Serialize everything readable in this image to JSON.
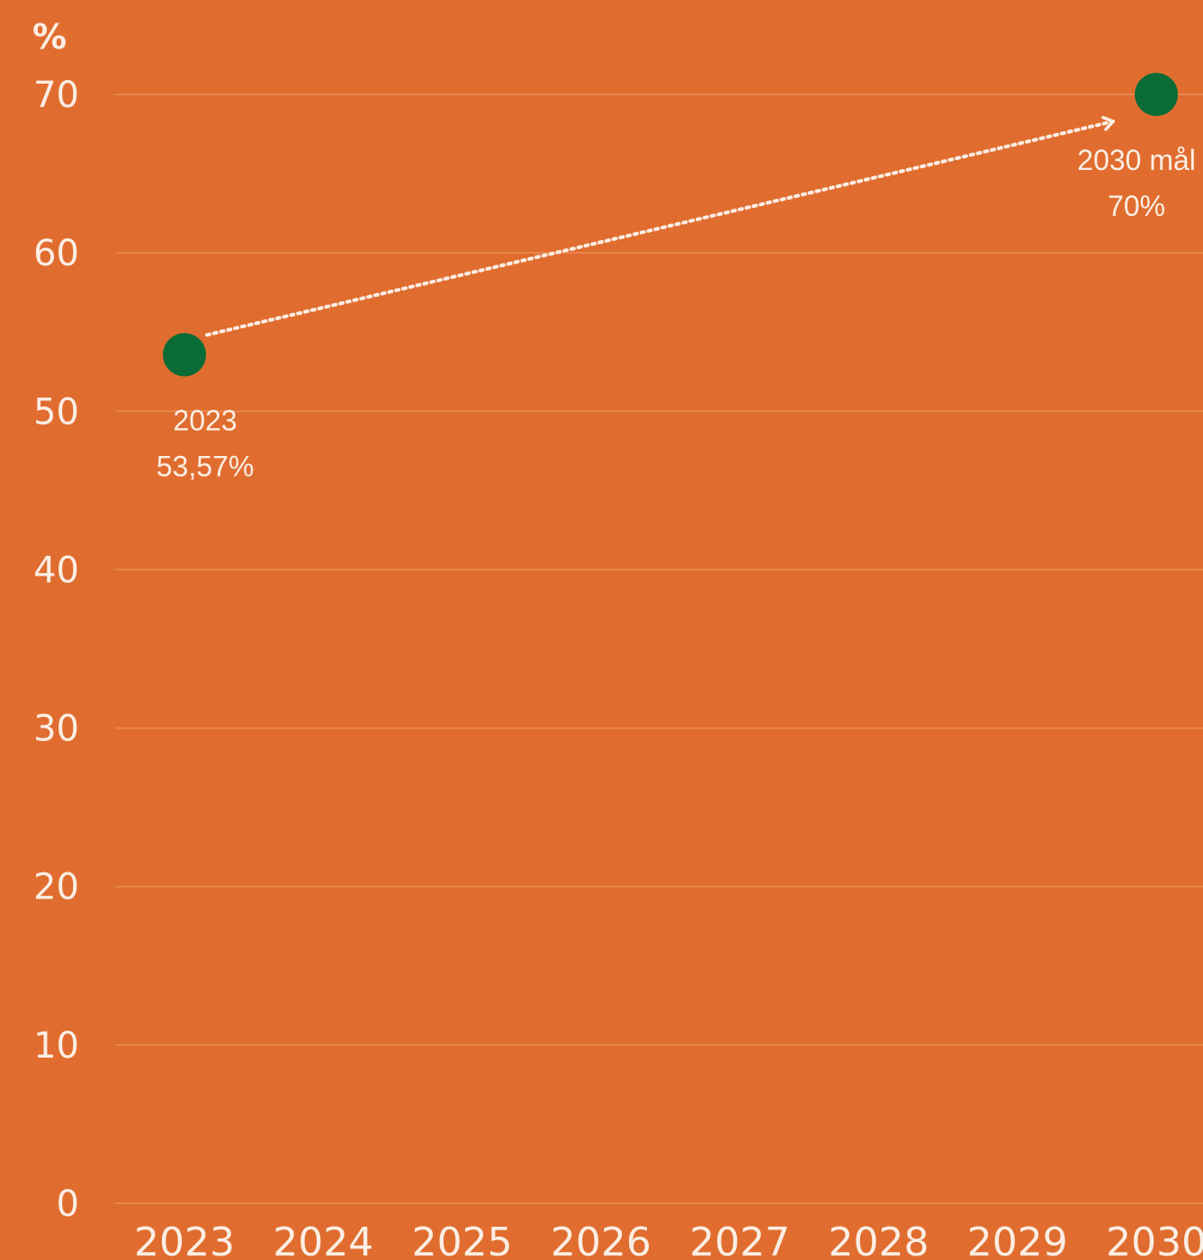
{
  "colors": {
    "background": "#e06d2f",
    "marker": "#0b6b36",
    "text": "#fbeee4",
    "grid": "#e8864f",
    "arrow": "#fbeee4"
  },
  "chart_data": {
    "type": "line",
    "ylabel": "%",
    "ylim": [
      0,
      70
    ],
    "yticks": [
      0,
      10,
      20,
      30,
      40,
      50,
      60,
      70
    ],
    "categories": [
      "2023",
      "2024",
      "2025",
      "2026",
      "2027",
      "2028",
      "2029",
      "2030"
    ],
    "grid": true,
    "points": [
      {
        "x": "2023",
        "y": 53.57,
        "label_line1": "2023",
        "label_line2": "53,57%"
      },
      {
        "x": "2030",
        "y": 70,
        "label_line1": "2030 mål",
        "label_line2": "70%"
      }
    ],
    "trend": {
      "style": "dotted-arrow",
      "from": "2023",
      "to": "2030"
    }
  }
}
